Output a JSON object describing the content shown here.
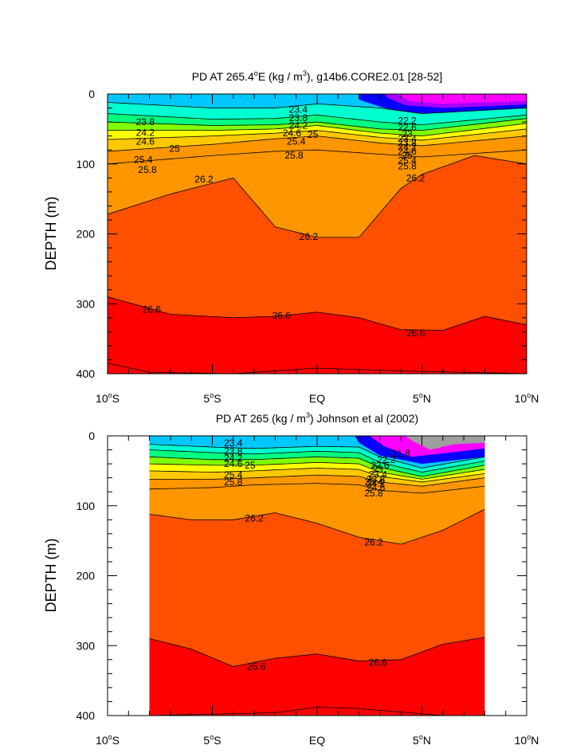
{
  "chart_data": [
    {
      "type": "contour",
      "title_prefix": "PD AT 265.4",
      "title_degree": "o",
      "title_mid": "E (kg / m",
      "title_exp": "3",
      "title_suffix": "), g14b6.CORE2.01 [28-52]",
      "ylabel": "DEPTH (m)",
      "ylim": [
        0,
        400
      ],
      "yticks": [
        "0",
        "100",
        "200",
        "300",
        "400"
      ],
      "xlim": [
        -10,
        10
      ],
      "xticks": [
        {
          "num": "10",
          "deg": "o",
          "hem": "S"
        },
        {
          "num": "5",
          "deg": "o",
          "hem": "S"
        },
        {
          "num": "EQ",
          "deg": "",
          "hem": ""
        },
        {
          "num": "5",
          "deg": "o",
          "hem": "N"
        },
        {
          "num": "10",
          "deg": "o",
          "hem": "N"
        }
      ],
      "lat_extent": [
        -10,
        10
      ],
      "contour_levels": [
        21.0,
        21.4,
        21.8,
        22.2,
        22.6,
        23.0,
        23.4,
        23.8,
        24.2,
        24.6,
        25.0,
        25.4,
        25.8,
        26.2,
        26.6
      ],
      "isopycnals": [
        {
          "level": 23.4,
          "lat": [
            -10,
            -5,
            -2,
            0,
            3,
            5,
            10
          ],
          "depth": [
            12,
            20,
            20,
            14,
            20,
            28,
            20
          ]
        },
        {
          "level": 23.8,
          "lat": [
            -10,
            -5,
            -2,
            0,
            3,
            5,
            10
          ],
          "depth": [
            28,
            36,
            35,
            30,
            40,
            44,
            30
          ]
        },
        {
          "level": 24.2,
          "lat": [
            -10,
            -5,
            -2,
            0,
            3,
            5,
            10
          ],
          "depth": [
            40,
            45,
            44,
            40,
            50,
            52,
            35
          ]
        },
        {
          "level": 24.6,
          "lat": [
            -10,
            -5,
            -2,
            0,
            3,
            5,
            10
          ],
          "depth": [
            52,
            52,
            50,
            45,
            56,
            60,
            42
          ]
        },
        {
          "level": 25.0,
          "lat": [
            -10,
            -5,
            -2,
            0,
            3,
            5,
            10
          ],
          "depth": [
            65,
            60,
            56,
            52,
            62,
            66,
            50
          ]
        },
        {
          "level": 25.4,
          "lat": [
            -10,
            -5,
            -2,
            0,
            3,
            5,
            10
          ],
          "depth": [
            82,
            72,
            64,
            60,
            70,
            74,
            60
          ]
        },
        {
          "level": 25.8,
          "lat": [
            -10,
            -5,
            -2,
            0,
            3,
            5,
            10
          ],
          "depth": [
            100,
            88,
            82,
            80,
            86,
            90,
            80
          ]
        },
        {
          "level": 26.2,
          "lat": [
            -10,
            -7,
            -4,
            -2,
            0,
            2,
            4,
            5,
            7.5,
            10
          ],
          "depth": [
            172,
            143,
            120,
            190,
            205,
            205,
            135,
            115,
            88,
            100
          ]
        },
        {
          "level": 26.6,
          "lat": [
            -10,
            -7,
            -4,
            -2,
            0,
            2,
            4,
            6,
            8,
            10
          ],
          "depth": [
            290,
            315,
            320,
            318,
            312,
            320,
            337,
            338,
            318,
            330
          ]
        }
      ],
      "labels": [
        {
          "text": "23.4",
          "lat": -0.9,
          "depth": 22
        },
        {
          "text": "23.8",
          "lat": -8.2,
          "depth": 40
        },
        {
          "text": "24.2",
          "lat": -8.2,
          "depth": 55
        },
        {
          "text": "24.6",
          "lat": -8.2,
          "depth": 68
        },
        {
          "text": "25",
          "lat": -6.8,
          "depth": 78
        },
        {
          "text": "25.4",
          "lat": -8.3,
          "depth": 94
        },
        {
          "text": "25.8",
          "lat": -8.1,
          "depth": 108
        },
        {
          "text": "23.8",
          "lat": -0.9,
          "depth": 34
        },
        {
          "text": "24.2",
          "lat": -0.9,
          "depth": 45
        },
        {
          "text": "24.6",
          "lat": -1.2,
          "depth": 56
        },
        {
          "text": "25",
          "lat": -0.2,
          "depth": 58
        },
        {
          "text": "25.4",
          "lat": -1.0,
          "depth": 68
        },
        {
          "text": "25.8",
          "lat": -1.1,
          "depth": 88
        },
        {
          "text": "22.2",
          "lat": 4.3,
          "depth": 38
        },
        {
          "text": "22.6",
          "lat": 4.3,
          "depth": 48
        },
        {
          "text": "23",
          "lat": 4.3,
          "depth": 57
        },
        {
          "text": "23.4",
          "lat": 4.3,
          "depth": 64
        },
        {
          "text": "23.8",
          "lat": 4.3,
          "depth": 70
        },
        {
          "text": "24.2",
          "lat": 4.3,
          "depth": 76
        },
        {
          "text": "24.6",
          "lat": 4.3,
          "depth": 82
        },
        {
          "text": "25",
          "lat": 4.3,
          "depth": 88
        },
        {
          "text": "25.4",
          "lat": 4.3,
          "depth": 95
        },
        {
          "text": "25.8",
          "lat": 4.3,
          "depth": 103
        },
        {
          "text": "26.2",
          "lat": -5.4,
          "depth": 122
        },
        {
          "text": "26.2",
          "lat": 4.7,
          "depth": 120
        },
        {
          "text": "26.2",
          "lat": -0.4,
          "depth": 204
        },
        {
          "text": "26.6",
          "lat": -7.9,
          "depth": 308
        },
        {
          "text": "26.6",
          "lat": -1.7,
          "depth": 317
        },
        {
          "text": "26.6",
          "lat": 4.7,
          "depth": 342
        }
      ]
    },
    {
      "type": "contour",
      "title_prefix": "PD AT 265 (kg / m",
      "title_exp": "3",
      "title_suffix": ") Johnson et al (2002)",
      "ylabel": "DEPTH (m)",
      "ylim": [
        0,
        400
      ],
      "yticks": [
        "0",
        "100",
        "200",
        "300",
        "400"
      ],
      "xlim": [
        -10,
        10
      ],
      "xticks": [
        {
          "num": "10",
          "deg": "o",
          "hem": "S"
        },
        {
          "num": "5",
          "deg": "o",
          "hem": "S"
        },
        {
          "num": "EQ",
          "deg": "",
          "hem": ""
        },
        {
          "num": "5",
          "deg": "o",
          "hem": "N"
        },
        {
          "num": "10",
          "deg": "o",
          "hem": "N"
        }
      ],
      "lat_extent": [
        -8,
        8
      ],
      "contour_levels": [
        20.2,
        21.0,
        21.4,
        21.8,
        22.2,
        22.6,
        23.0,
        23.4,
        23.8,
        24.2,
        24.6,
        25.0,
        25.4,
        25.8,
        26.2,
        26.6
      ],
      "isopycnals": [
        {
          "level": 23.4,
          "lat": [
            -8,
            -5,
            -3,
            0,
            2,
            3,
            5,
            8
          ],
          "depth": [
            12,
            16,
            18,
            15,
            16,
            30,
            46,
            30
          ]
        },
        {
          "level": 23.8,
          "lat": [
            -8,
            -5,
            -3,
            0,
            2,
            3,
            5,
            8
          ],
          "depth": [
            20,
            24,
            26,
            22,
            24,
            38,
            52,
            36
          ]
        },
        {
          "level": 24.2,
          "lat": [
            -8,
            -5,
            -3,
            0,
            2,
            3,
            5,
            8
          ],
          "depth": [
            30,
            34,
            34,
            30,
            32,
            45,
            58,
            42
          ]
        },
        {
          "level": 24.6,
          "lat": [
            -8,
            -5,
            -3,
            0,
            2,
            3,
            5,
            8
          ],
          "depth": [
            40,
            42,
            42,
            38,
            40,
            52,
            62,
            48
          ]
        },
        {
          "level": 25.0,
          "lat": [
            -8,
            -5,
            -3,
            0,
            2,
            3,
            5,
            8
          ],
          "depth": [
            50,
            52,
            50,
            46,
            48,
            58,
            66,
            54
          ]
        },
        {
          "level": 25.4,
          "lat": [
            -8,
            -5,
            -3,
            0,
            2,
            3,
            5,
            8
          ],
          "depth": [
            62,
            62,
            60,
            56,
            58,
            66,
            72,
            60
          ]
        },
        {
          "level": 25.8,
          "lat": [
            -8,
            -5,
            -3,
            0,
            2,
            3,
            5,
            8
          ],
          "depth": [
            76,
            74,
            70,
            68,
            70,
            78,
            82,
            72
          ]
        },
        {
          "level": 26.2,
          "lat": [
            -8,
            -6,
            -4,
            -2,
            0,
            2,
            4,
            6,
            8
          ],
          "depth": [
            112,
            120,
            120,
            110,
            125,
            145,
            155,
            135,
            105
          ]
        },
        {
          "level": 26.6,
          "lat": [
            -8,
            -6,
            -4,
            -2,
            0,
            2,
            4,
            6,
            8
          ],
          "depth": [
            290,
            305,
            330,
            318,
            312,
            322,
            320,
            298,
            288
          ]
        }
      ],
      "labels": [
        {
          "text": "23.4",
          "lat": -4.0,
          "depth": 10
        },
        {
          "text": "23.8",
          "lat": -4.0,
          "depth": 22
        },
        {
          "text": "24.2",
          "lat": -4.0,
          "depth": 32
        },
        {
          "text": "24.6",
          "lat": -4.0,
          "depth": 40
        },
        {
          "text": "25",
          "lat": -3.2,
          "depth": 42
        },
        {
          "text": "25.4",
          "lat": -4.0,
          "depth": 56
        },
        {
          "text": "25.8",
          "lat": -4.0,
          "depth": 66
        },
        {
          "text": "21.8",
          "lat": 4.0,
          "depth": 25
        },
        {
          "text": "22.2",
          "lat": 3.3,
          "depth": 34
        },
        {
          "text": "22.6",
          "lat": 3.0,
          "depth": 42
        },
        {
          "text": "23",
          "lat": 2.9,
          "depth": 48
        },
        {
          "text": "23.4",
          "lat": 2.9,
          "depth": 55
        },
        {
          "text": "23.8",
          "lat": 2.8,
          "depth": 62
        },
        {
          "text": "24.2",
          "lat": 2.8,
          "depth": 68
        },
        {
          "text": "24.6",
          "lat": 2.8,
          "depth": 74
        },
        {
          "text": "25.4",
          "lat": 2.7,
          "depth": 66
        },
        {
          "text": "25.8",
          "lat": 2.7,
          "depth": 82
        },
        {
          "text": "26.2",
          "lat": -3.0,
          "depth": 118
        },
        {
          "text": "26.2",
          "lat": 2.7,
          "depth": 152
        },
        {
          "text": "26.6",
          "lat": -2.9,
          "depth": 330
        },
        {
          "text": "26.6",
          "lat": 2.9,
          "depth": 324
        }
      ]
    }
  ],
  "colors": {
    "c0": "#9e9e9e",
    "c1": "#ff00ff",
    "c2": "#a600ff",
    "c3": "#5a00ff",
    "c4": "#0000ff",
    "c5": "#0064ff",
    "c6": "#00c8ff",
    "c7": "#00ffd0",
    "c8": "#00ff80",
    "c9": "#80ff00",
    "c10": "#ffff00",
    "c11": "#ffc800",
    "c12": "#ff9600",
    "c13": "#ff5000",
    "c14": "#ff0000",
    "c15": "#d00000"
  }
}
